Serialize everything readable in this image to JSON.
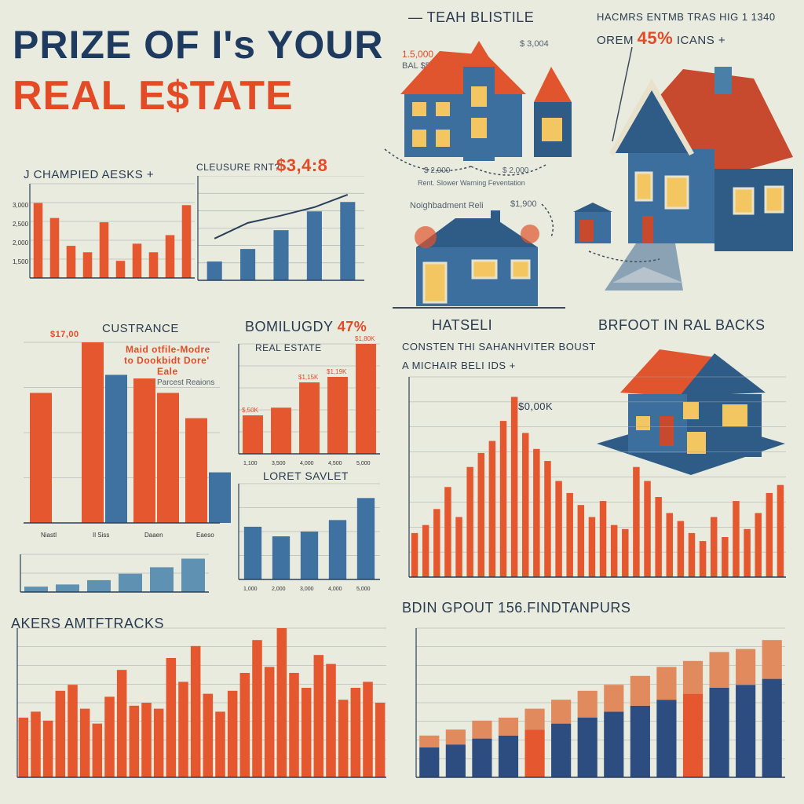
{
  "header": {
    "title_line1": "PRIZE OF I's YOUR",
    "title_line2": "REAL E$TATE"
  },
  "labels": {
    "teah": "— TEAH BLISTILE",
    "top_right_1": "HACMRS ENTMB TRAS HIG 1 1340",
    "top_right_2": "OREM",
    "top_right_pct": "45%",
    "top_right_3": "ICANS +",
    "price_15000": "1.5,000",
    "price_bal": "BAL $500",
    "price_3004": "$ 3,004",
    "champ": "J CHAMPIED AESKS +",
    "closure": "CLEUSURE RNT?",
    "closure_value": "$3,4:8",
    "house_2900": "$ 2,900",
    "house_2000": "$ 2,000",
    "rent_slower": "Rent. Slower Warning Feventation",
    "neighborhood": "Noighbadment Reli",
    "neighborhood_val": "$1,900",
    "custrance": "CUSTRANCE",
    "custrance_val": "$17,00",
    "maid": "Maid otfile-Modre",
    "maid2": "to Dookbidt Dore'",
    "maid3": "Eale",
    "forecast": "Parcest Reaions",
    "bomilugdy": "BOMILUGDY",
    "bomilugdy_pct": "47%",
    "real_estate": "REAL ESTATE",
    "hatseli": "HATSELI",
    "consten": "CONSTEN THI SAHANHVITER BOUST",
    "michair": "A MICHAIR BELI IDS +",
    "bfoot": "BRFOOT IN RAL BACKS",
    "val_0006": "$0,00K",
    "lorest": "LORET SAVLET",
    "akers": "AKERS AMTFTRACKS",
    "bdin": "BDIN GPOUT 156.FINDTANPURS"
  },
  "chart_data": [
    {
      "id": "c1",
      "type": "bar",
      "title": "J CHAMPIED AESKS +",
      "y_ticks": [
        "3,000",
        "2,500",
        "2,000",
        "1,500"
      ],
      "values": [
        2950,
        2600,
        1950,
        1800,
        2500,
        1600,
        2000,
        1800,
        2200,
        2900
      ],
      "ylim": [
        1200,
        3400
      ]
    },
    {
      "id": "c2",
      "type": "bar+line",
      "title": "CLEUSURE RNT?",
      "values": [
        18,
        30,
        48,
        66,
        75
      ],
      "line": [
        40,
        55,
        62,
        70,
        82
      ]
    },
    {
      "id": "c3",
      "type": "bar",
      "title": "CUSTRANCE",
      "categories": [
        "Niastl",
        "Il Siss",
        "Daaen",
        "Eaeso"
      ],
      "series": [
        {
          "values": [
            72,
            100,
            80,
            58
          ]
        },
        {
          "values": [
            0,
            82,
            72,
            28
          ]
        }
      ]
    },
    {
      "id": "c4",
      "type": "bar",
      "title": "BOMILUGDY 47%",
      "categories": [
        "1,100",
        "3,500",
        "4,000",
        "4,500",
        "5,000"
      ],
      "values": [
        35,
        42,
        65,
        70,
        100
      ],
      "labels": [
        "$,50K",
        "",
        "$1,15K",
        "$1,19K",
        "$1,80K"
      ]
    },
    {
      "id": "c5",
      "type": "bar",
      "title": "LORET SAVLET",
      "categories": [
        "1,000",
        "2,000",
        "3,000",
        "4,000",
        "5,000"
      ],
      "values": [
        55,
        45,
        50,
        62,
        85
      ]
    },
    {
      "id": "c6",
      "type": "bar",
      "values": [
        10,
        14,
        22,
        34,
        46,
        62
      ]
    },
    {
      "id": "c7",
      "type": "bar",
      "title": "A MICHAIR BELI IDS +",
      "values": [
        22,
        26,
        34,
        45,
        30,
        55,
        62,
        68,
        78,
        90,
        72,
        64,
        58,
        48,
        42,
        36,
        30,
        38,
        26,
        24,
        55,
        48,
        40,
        32,
        28,
        22,
        18,
        30,
        20,
        38,
        24,
        32,
        42,
        46
      ]
    },
    {
      "id": "c8",
      "type": "bar",
      "title": "AKERS AMTFTRACKS",
      "values": [
        40,
        44,
        38,
        58,
        62,
        46,
        36,
        54,
        72,
        48,
        50,
        46,
        80,
        64,
        88,
        56,
        44,
        58,
        70,
        92,
        74,
        100,
        70,
        60,
        82,
        76,
        52,
        60,
        64,
        50
      ]
    },
    {
      "id": "c9",
      "type": "bar",
      "title": "BDIN GPOUT 156.FINDTANPURS",
      "series": [
        {
          "name": "",
          "values": [
            20,
            22,
            26,
            28,
            32,
            36,
            40,
            44,
            48,
            52,
            56,
            60,
            62,
            66
          ]
        },
        {
          "name": "",
          "values": [
            8,
            10,
            12,
            12,
            14,
            16,
            18,
            18,
            20,
            22,
            22,
            24,
            24,
            26
          ]
        }
      ]
    }
  ]
}
